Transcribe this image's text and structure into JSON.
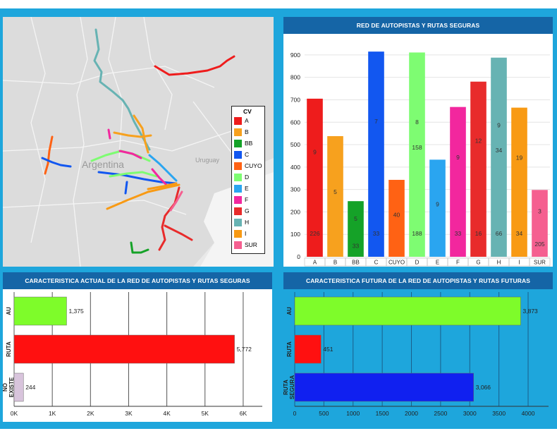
{
  "colors": {
    "frame": "#1ea6dc",
    "header": "#1565a6",
    "A": "#ee1c1c",
    "B": "#f7a11e",
    "BB": "#15a228",
    "C": "#1257f0",
    "CUYO": "#ff6214",
    "D": "#7efc72",
    "E": "#2aa5f0",
    "F": "#f2279e",
    "G": "#e82b2b",
    "H": "#67b3b3",
    "I": "#f89a14",
    "SUR": "#f55f90"
  },
  "map": {
    "place_labels": [
      "Argentina",
      "Uruguay"
    ],
    "legend_title": "CV",
    "legend": [
      "A",
      "B",
      "BB",
      "C",
      "CUYO",
      "D",
      "E",
      "F",
      "G",
      "H",
      "I",
      "SUR"
    ]
  },
  "chart_data": [
    {
      "type": "bar",
      "title": "RED DE AUTOPISTAS Y RUTAS SEGURAS",
      "categories": [
        "A",
        "B",
        "BB",
        "C",
        "CUYO",
        "D",
        "E",
        "F",
        "G",
        "H",
        "I",
        "SUR"
      ],
      "values": [
        705,
        538,
        248,
        915,
        343,
        911,
        433,
        668,
        781,
        888,
        665,
        298
      ],
      "segment_labels": [
        [
          "226",
          "9"
        ],
        [
          "5"
        ],
        [
          "33",
          "5"
        ],
        [
          "33",
          "7"
        ],
        [
          "40"
        ],
        [
          "188",
          "158",
          "8"
        ],
        [
          "9"
        ],
        [
          "33",
          "9"
        ],
        [
          "16",
          "12"
        ],
        [
          "66",
          "34",
          "9"
        ],
        [
          "34",
          "19"
        ],
        [
          "205",
          "3"
        ]
      ],
      "ylim": [
        0,
        950
      ],
      "yticks": [
        0,
        100,
        200,
        300,
        400,
        500,
        600,
        700,
        800,
        900
      ],
      "grid": true
    },
    {
      "type": "bar",
      "orientation": "horizontal",
      "title": "CARACTERISTICA ACTUAL DE LA RED DE AUTOPISTAS Y RUTAS SEGURAS",
      "categories": [
        "AU",
        "RUTA",
        "NO EXISTE"
      ],
      "values": [
        1375,
        5772,
        244
      ],
      "value_labels": [
        "1,375",
        "5,772",
        "244"
      ],
      "bar_colors": [
        "#7efc2a",
        "#ff1010",
        "#d8c4dc"
      ],
      "xlim": [
        0,
        6500
      ],
      "xticks": [
        0,
        1000,
        2000,
        3000,
        4000,
        5000,
        6000
      ],
      "xtick_labels": [
        "0K",
        "1K",
        "2K",
        "3K",
        "4K",
        "5K",
        "6K"
      ],
      "grid": true
    },
    {
      "type": "bar",
      "orientation": "horizontal",
      "title": "CARACTERISTICA FUTURA DE LA RED DE AUTOPISTAS Y RUTAS FUTURAS",
      "categories": [
        "AU",
        "RUTA",
        "RUTA SEGURA"
      ],
      "values": [
        3873,
        451,
        3066
      ],
      "value_labels": [
        "3,873",
        "451",
        "3,066"
      ],
      "bar_colors": [
        "#7efc2a",
        "#ff1010",
        "#1020f0"
      ],
      "xlim": [
        0,
        4350
      ],
      "xticks": [
        0,
        500,
        1000,
        1500,
        2000,
        2500,
        3000,
        3500,
        4000
      ],
      "xtick_labels": [
        "0",
        "500",
        "1000",
        "1500",
        "2000",
        "2500",
        "3000",
        "3500",
        "4000"
      ],
      "grid": true
    }
  ]
}
